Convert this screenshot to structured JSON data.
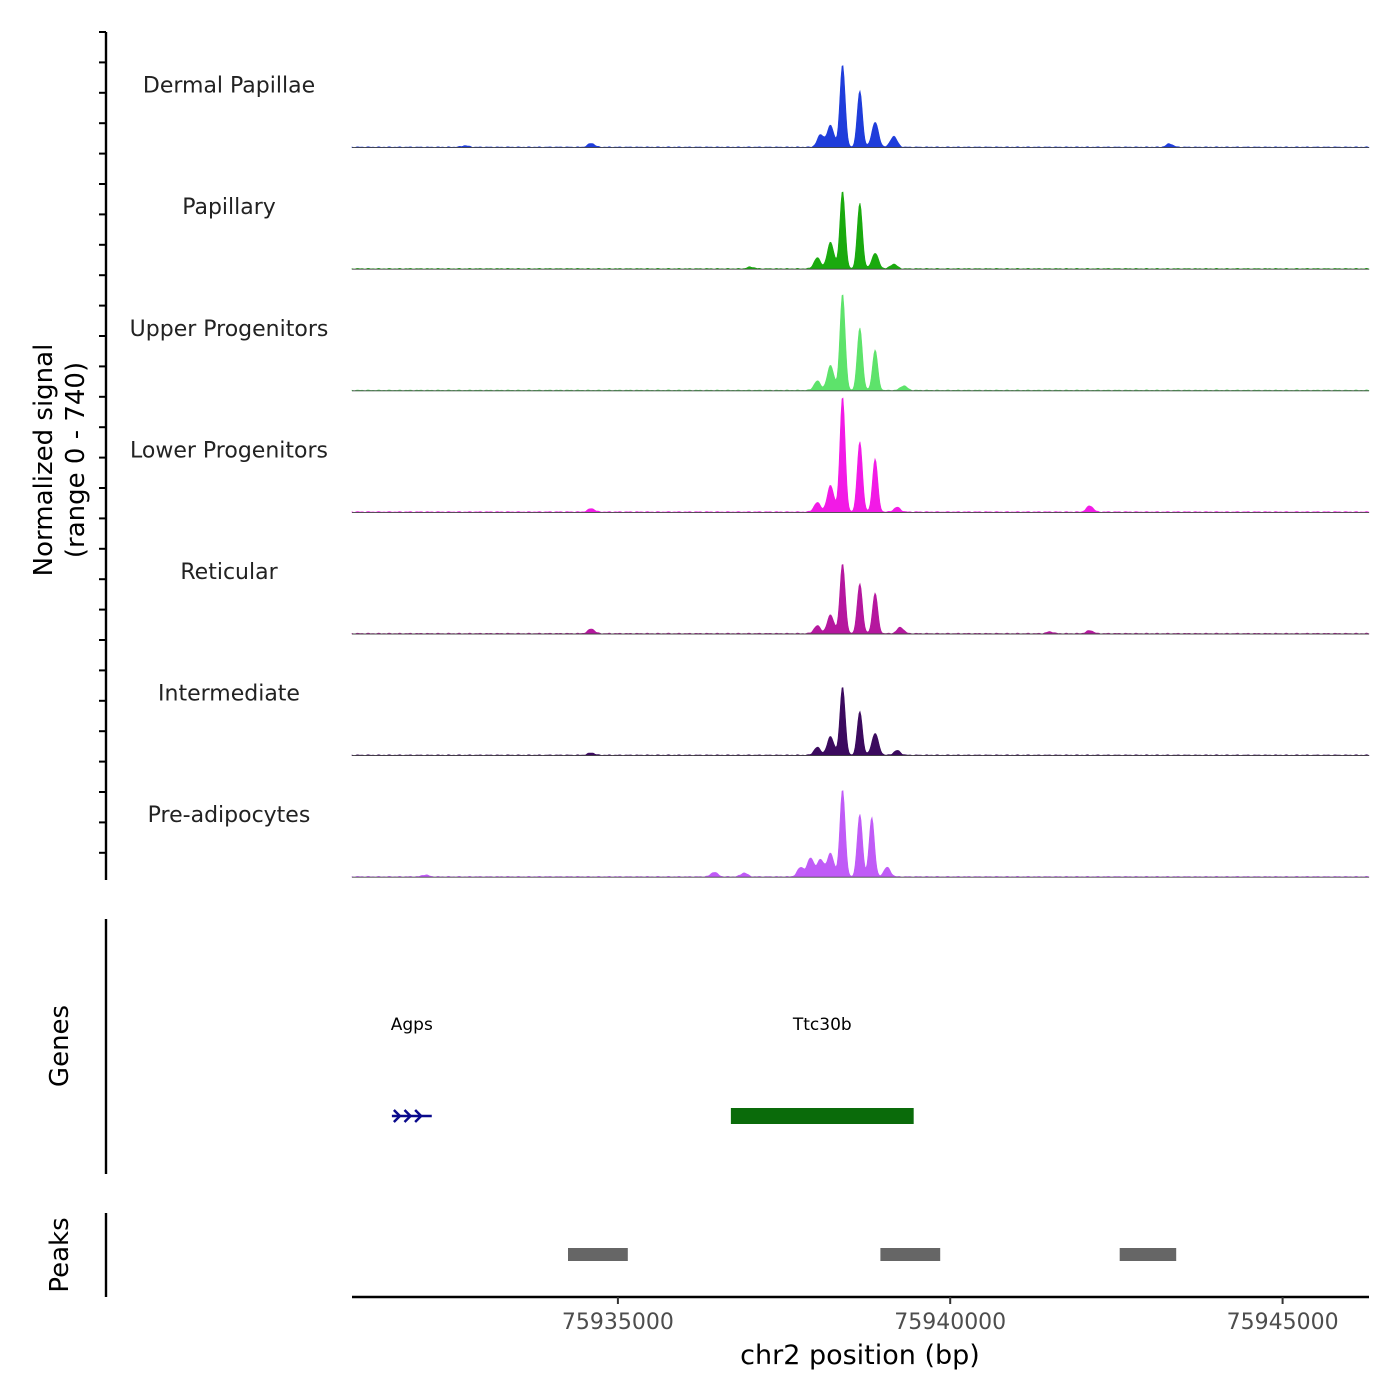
{
  "chart_data": {
    "type": "area",
    "title": "",
    "chromosome": "chr2",
    "xlabel": "chr2 position (bp)",
    "xlim": [
      75931000,
      75946300
    ],
    "xticks": [
      75935000,
      75940000,
      75945000
    ],
    "xtick_labels": [
      "75935000",
      "75940000",
      "75945000"
    ],
    "ylabel_line1": "Normalized signal",
    "ylabel_line2": "(range 0 - 740)",
    "ylim": [
      0,
      740
    ],
    "series": [
      {
        "name": "Dermal Papillae",
        "color": "#1f3ddb",
        "peaks": [
          {
            "pos": 75938380,
            "height": 530
          },
          {
            "pos": 75938640,
            "height": 360
          },
          {
            "pos": 75938870,
            "height": 160
          },
          {
            "pos": 75938200,
            "height": 140
          },
          {
            "pos": 75938050,
            "height": 80
          },
          {
            "pos": 75939150,
            "height": 70
          },
          {
            "pos": 75934600,
            "height": 25
          },
          {
            "pos": 75943300,
            "height": 22
          },
          {
            "pos": 75932700,
            "height": 10
          }
        ]
      },
      {
        "name": "Papillary",
        "color": "#1aaa0e",
        "peaks": [
          {
            "pos": 75938380,
            "height": 500
          },
          {
            "pos": 75938640,
            "height": 420
          },
          {
            "pos": 75938200,
            "height": 170
          },
          {
            "pos": 75938870,
            "height": 100
          },
          {
            "pos": 75938000,
            "height": 70
          },
          {
            "pos": 75939150,
            "height": 30
          },
          {
            "pos": 75937000,
            "height": 12
          }
        ]
      },
      {
        "name": "Upper Progenitors",
        "color": "#5de36b",
        "peaks": [
          {
            "pos": 75938380,
            "height": 620
          },
          {
            "pos": 75938640,
            "height": 400
          },
          {
            "pos": 75938870,
            "height": 260
          },
          {
            "pos": 75938200,
            "height": 160
          },
          {
            "pos": 75938000,
            "height": 60
          },
          {
            "pos": 75939300,
            "height": 30
          }
        ]
      },
      {
        "name": "Lower Progenitors",
        "color": "#f21ae6",
        "peaks": [
          {
            "pos": 75938380,
            "height": 740
          },
          {
            "pos": 75938640,
            "height": 450
          },
          {
            "pos": 75938870,
            "height": 340
          },
          {
            "pos": 75938200,
            "height": 170
          },
          {
            "pos": 75938000,
            "height": 60
          },
          {
            "pos": 75939200,
            "height": 30
          },
          {
            "pos": 75942100,
            "height": 40
          },
          {
            "pos": 75934600,
            "height": 22
          }
        ]
      },
      {
        "name": "Reticular",
        "color": "#b5179e",
        "peaks": [
          {
            "pos": 75938380,
            "height": 450
          },
          {
            "pos": 75938640,
            "height": 320
          },
          {
            "pos": 75938870,
            "height": 260
          },
          {
            "pos": 75938200,
            "height": 120
          },
          {
            "pos": 75938000,
            "height": 50
          },
          {
            "pos": 75939250,
            "height": 40
          },
          {
            "pos": 75934600,
            "height": 30
          },
          {
            "pos": 75942100,
            "height": 20
          },
          {
            "pos": 75941500,
            "height": 12
          }
        ]
      },
      {
        "name": "Intermediate",
        "color": "#3b0a5e",
        "peaks": [
          {
            "pos": 75938380,
            "height": 440
          },
          {
            "pos": 75938640,
            "height": 280
          },
          {
            "pos": 75938200,
            "height": 120
          },
          {
            "pos": 75938870,
            "height": 140
          },
          {
            "pos": 75938000,
            "height": 50
          },
          {
            "pos": 75939200,
            "height": 30
          },
          {
            "pos": 75934600,
            "height": 15
          }
        ]
      },
      {
        "name": "Pre-adipocytes",
        "color": "#c05bf7",
        "peaks": [
          {
            "pos": 75938380,
            "height": 560
          },
          {
            "pos": 75938640,
            "height": 400
          },
          {
            "pos": 75938820,
            "height": 380
          },
          {
            "pos": 75938200,
            "height": 150
          },
          {
            "pos": 75937900,
            "height": 120
          },
          {
            "pos": 75938050,
            "height": 110
          },
          {
            "pos": 75937750,
            "height": 60
          },
          {
            "pos": 75939050,
            "height": 60
          },
          {
            "pos": 75936450,
            "height": 30
          },
          {
            "pos": 75936900,
            "height": 25
          },
          {
            "pos": 75932100,
            "height": 12
          }
        ]
      }
    ],
    "genes_label": "Genes",
    "genes": [
      {
        "name": "Agps",
        "start": 75931600,
        "end": 75932200,
        "strand": "+",
        "color": "#0a0a8c"
      },
      {
        "name": "Ttc30b",
        "start": 75936700,
        "end": 75939450,
        "strand": "",
        "color": "#0a6b0a"
      }
    ],
    "peaks_label": "Peaks",
    "peaks": [
      {
        "start": 75934250,
        "end": 75935150
      },
      {
        "start": 75938950,
        "end": 75939850
      },
      {
        "start": 75942550,
        "end": 75943400
      }
    ],
    "peak_color": "#666666"
  }
}
